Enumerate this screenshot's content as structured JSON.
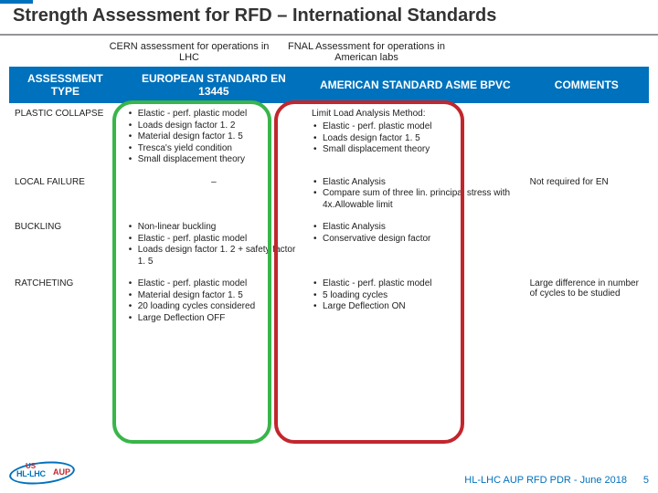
{
  "title": "Strength Assessment for RFD – International Standards",
  "subheads": {
    "a": "CERN assessment for operations in LHC",
    "b": "FNAL Assessment for operations in American labs"
  },
  "headers": {
    "c0": "ASSESSMENT TYPE",
    "c1": "EUROPEAN STANDARD EN 13445",
    "c2": "AMERICAN STANDARD ASME BPVC",
    "c3": "COMMENTS"
  },
  "rows": {
    "plastic": {
      "label": "PLASTIC COLLAPSE",
      "eu": [
        "Elastic - perf. plastic model",
        "Loads design factor 1. 2",
        "Material design factor 1. 5",
        "Tresca's yield condition",
        "Small displacement theory"
      ],
      "us_lead": "Limit Load Analysis Method:",
      "us": [
        "Elastic - perf. plastic model",
        "Loads design factor 1. 5",
        "Small displacement theory"
      ],
      "comment": ""
    },
    "local": {
      "label": "LOCAL FAILURE",
      "eu_dash": "–",
      "us": [
        "Elastic Analysis",
        "Compare sum of three lin. principal stress with 4x.Allowable limit"
      ],
      "comment": "Not required for EN"
    },
    "buckling": {
      "label": "BUCKLING",
      "eu": [
        "Non-linear buckling",
        "Elastic - perf. plastic model",
        "Loads design factor 1. 2 + safety factor 1. 5"
      ],
      "us": [
        "Elastic Analysis",
        "Conservative design factor"
      ],
      "comment": ""
    },
    "ratchet": {
      "label": "RATCHETING",
      "eu": [
        "Elastic - perf. plastic model",
        "Material design factor 1. 5",
        "20 loading cycles considered",
        "Large Deflection OFF"
      ],
      "us": [
        "Elastic - perf. plastic model",
        "5 loading cycles",
        "Large Deflection ON"
      ],
      "comment": "Large difference in number of cycles to be studied"
    }
  },
  "footer": {
    "text": "HL-LHC AUP RFD PDR - June 2018",
    "page": "5"
  },
  "logo": {
    "t1": "US",
    "t2": "HL-LHC",
    "t3": "AUP"
  },
  "colors": {
    "accent": "#0071bc",
    "green": "#39b54a",
    "red": "#c1272d"
  }
}
